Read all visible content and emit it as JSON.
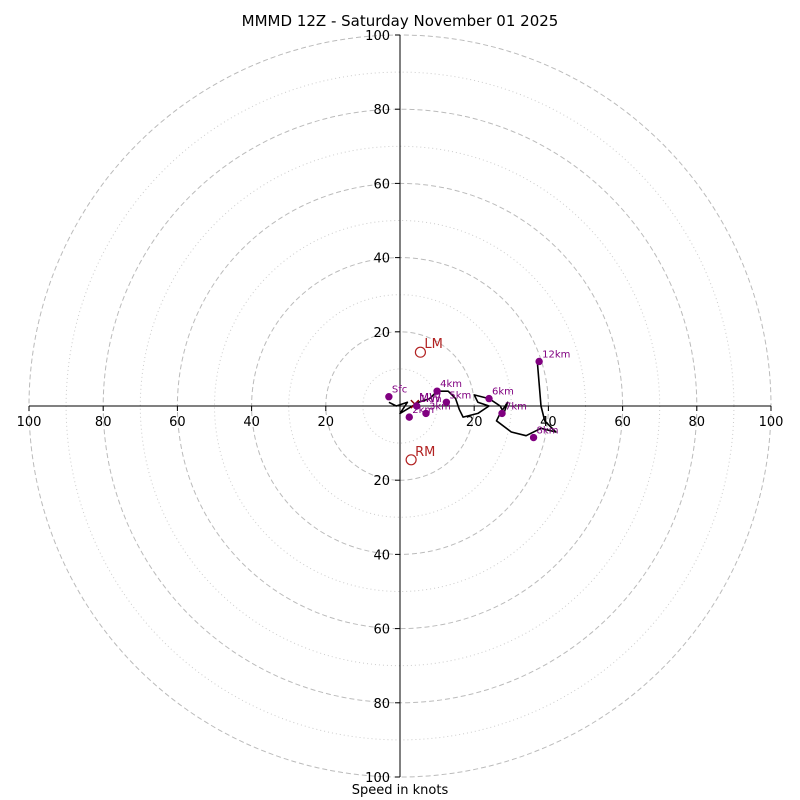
{
  "chart_data": {
    "type": "hodograph",
    "title": "MMMD 12Z - Saturday November 01 2025",
    "xlabel": "Speed in knots",
    "range_knots": [
      0,
      100
    ],
    "rings": {
      "major": [
        20,
        40,
        60,
        80,
        100
      ],
      "minor": [
        10,
        30,
        50,
        70,
        90
      ]
    },
    "tick_labels": {
      "top": [
        "20",
        "40",
        "60",
        "80",
        "100"
      ],
      "bottom": [
        "20",
        "40",
        "60",
        "80",
        "100"
      ],
      "left": [
        "20",
        "40",
        "60",
        "80",
        "100"
      ],
      "right": [
        "20",
        "40",
        "60",
        "80",
        "100"
      ]
    },
    "colors": {
      "trace": "#000000",
      "height_markers": "#800080",
      "storm_motion": "#b22222",
      "mean_wind": "#8b0000",
      "rings": "#bbbbbb"
    },
    "hodograph_trace": {
      "u": [
        -3,
        -1,
        2,
        0,
        5,
        8,
        10,
        13,
        15,
        16,
        17,
        21,
        24,
        21,
        20,
        24,
        27,
        28,
        29,
        27,
        26,
        30,
        34,
        38,
        42,
        39,
        38,
        37
      ],
      "v": [
        1,
        0,
        1,
        -2,
        1,
        2,
        4,
        4,
        2,
        -1,
        -3,
        -2,
        0,
        1,
        3,
        2,
        0,
        -2,
        1,
        -2,
        -4,
        -7,
        -8,
        -6,
        -7,
        -4,
        0,
        12
      ]
    },
    "height_markers": [
      {
        "label": "Sfc",
        "u": -3,
        "v": 2.5
      },
      {
        "label": "1km",
        "u": 4.5,
        "v": 0
      },
      {
        "label": "2km",
        "u": 2.5,
        "v": -3
      },
      {
        "label": "3km",
        "u": 7,
        "v": -2
      },
      {
        "label": "4km",
        "u": 10,
        "v": 4
      },
      {
        "label": "5km",
        "u": 12.5,
        "v": 1
      },
      {
        "label": "6km",
        "u": 24,
        "v": 2
      },
      {
        "label": "7km",
        "u": 27.5,
        "v": -2
      },
      {
        "label": "8km",
        "u": 36,
        "v": -8.5
      },
      {
        "label": "12km",
        "u": 37.5,
        "v": 12
      }
    ],
    "storm_motion": [
      {
        "label": "LM",
        "u": 5.5,
        "v": 14.5
      },
      {
        "label": "RM",
        "u": 3,
        "v": -14.5
      }
    ],
    "mean_wind": {
      "label": "MW",
      "u": 4,
      "v": 0.5
    }
  }
}
